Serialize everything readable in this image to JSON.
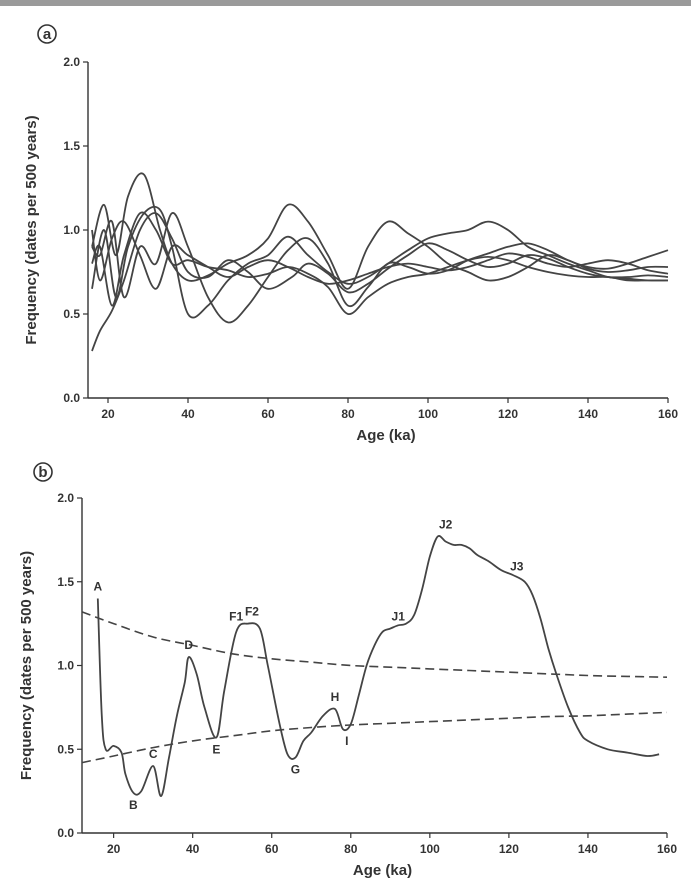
{
  "chart_data": [
    {
      "panel_label": "a",
      "type": "line",
      "xlabel": "Age (ka)",
      "ylabel": "Frequency (dates per 500 years)",
      "xlim": [
        15,
        160
      ],
      "ylim": [
        0,
        2.0
      ],
      "xticks": [
        "20",
        "40",
        "60",
        "80",
        "100",
        "120",
        "140",
        "160"
      ],
      "yticks": [
        "0.0",
        "0.5",
        "1.0",
        "1.5",
        "2.0"
      ],
      "series": [
        {
          "x": [
            16,
            18,
            21,
            24,
            28,
            32,
            36,
            40,
            45,
            50,
            55,
            60,
            66,
            70,
            75,
            80,
            85,
            90,
            95,
            100,
            105,
            110,
            115,
            120,
            125,
            130,
            135,
            140,
            145,
            150,
            155,
            160
          ],
          "y": [
            0.28,
            0.4,
            0.52,
            0.7,
            1.0,
            1.1,
            0.95,
            0.75,
            0.72,
            0.82,
            0.75,
            0.65,
            0.72,
            0.8,
            0.74,
            0.63,
            0.68,
            0.77,
            0.85,
            0.92,
            0.88,
            0.82,
            0.78,
            0.8,
            0.85,
            0.83,
            0.78,
            0.74,
            0.72,
            0.72,
            0.73,
            0.72
          ]
        },
        {
          "x": [
            16,
            19,
            22,
            25,
            29,
            33,
            36,
            40,
            45,
            50,
            55,
            60,
            65,
            70,
            75,
            80,
            85,
            90,
            95,
            100,
            105,
            110,
            115,
            120,
            125,
            130,
            135,
            140,
            145,
            150,
            155,
            160
          ],
          "y": [
            0.9,
            1.15,
            0.85,
            1.2,
            1.33,
            1.0,
            0.8,
            0.7,
            0.73,
            0.8,
            0.85,
            0.95,
            1.15,
            1.05,
            0.85,
            0.65,
            0.9,
            1.05,
            0.98,
            0.9,
            0.8,
            0.75,
            0.7,
            0.72,
            0.78,
            0.85,
            0.82,
            0.77,
            0.75,
            0.76,
            0.78,
            0.78
          ]
        },
        {
          "x": [
            16,
            19,
            22,
            25,
            29,
            33,
            36,
            40,
            45,
            50,
            55,
            60,
            65,
            70,
            75,
            80,
            85,
            90,
            95,
            100,
            105,
            110,
            115,
            120,
            125,
            130,
            135,
            140,
            145,
            150,
            155,
            160
          ],
          "y": [
            0.65,
            1.0,
            0.6,
            0.9,
            1.1,
            1.12,
            0.9,
            0.5,
            0.55,
            0.7,
            0.8,
            0.85,
            0.96,
            0.85,
            0.75,
            0.68,
            0.72,
            0.8,
            0.88,
            0.95,
            0.98,
            1.0,
            1.05,
            1.0,
            0.9,
            0.85,
            0.8,
            0.76,
            0.72,
            0.71,
            0.7,
            0.7
          ]
        },
        {
          "x": [
            16,
            18,
            21,
            24,
            28,
            32,
            36,
            40,
            45,
            50,
            55,
            60,
            65,
            70,
            75,
            80,
            85,
            90,
            95,
            100,
            105,
            110,
            115,
            120,
            125,
            130,
            135,
            140,
            145,
            150,
            155,
            160
          ],
          "y": [
            0.9,
            0.85,
            1.05,
            0.6,
            0.9,
            0.8,
            1.1,
            0.9,
            0.6,
            0.45,
            0.55,
            0.72,
            0.88,
            0.95,
            0.8,
            0.55,
            0.66,
            0.8,
            0.78,
            0.74,
            0.76,
            0.82,
            0.86,
            0.9,
            0.92,
            0.88,
            0.82,
            0.78,
            0.77,
            0.8,
            0.84,
            0.88
          ]
        },
        {
          "x": [
            16,
            18,
            21,
            24,
            28,
            32,
            36,
            40,
            45,
            50,
            55,
            60,
            65,
            70,
            75,
            80,
            85,
            90,
            95,
            100,
            105,
            110,
            115,
            120,
            125,
            130,
            135,
            140,
            145,
            150,
            155,
            160
          ],
          "y": [
            1.0,
            0.7,
            0.95,
            1.05,
            0.85,
            0.65,
            0.9,
            0.85,
            0.78,
            0.72,
            0.78,
            0.82,
            0.78,
            0.72,
            0.68,
            0.7,
            0.74,
            0.78,
            0.8,
            0.78,
            0.76,
            0.78,
            0.82,
            0.86,
            0.84,
            0.8,
            0.78,
            0.8,
            0.82,
            0.8,
            0.76,
            0.74
          ]
        },
        {
          "x": [
            16,
            18,
            21,
            24,
            28,
            32,
            36,
            40,
            45,
            50,
            55,
            60,
            65,
            70,
            75,
            80,
            85,
            90,
            95,
            100,
            105,
            110,
            115,
            120,
            125,
            130,
            135,
            140,
            145,
            150,
            155,
            160
          ],
          "y": [
            0.8,
            0.9,
            0.55,
            0.85,
            1.1,
            1.0,
            0.8,
            0.82,
            0.78,
            0.76,
            0.72,
            0.74,
            0.78,
            0.74,
            0.66,
            0.5,
            0.6,
            0.68,
            0.72,
            0.74,
            0.78,
            0.82,
            0.84,
            0.82,
            0.78,
            0.75,
            0.73,
            0.72,
            0.72,
            0.7,
            0.7,
            0.7
          ]
        }
      ]
    },
    {
      "panel_label": "b",
      "type": "line",
      "xlabel": "Age (ka)",
      "ylabel": "Frequency (dates per 500 years)",
      "xlim": [
        12,
        160
      ],
      "ylim": [
        0,
        2.0
      ],
      "xticks": [
        "20",
        "40",
        "60",
        "80",
        "100",
        "120",
        "140",
        "160"
      ],
      "yticks": [
        "0.0",
        "0.5",
        "1.0",
        "1.5",
        "2.0"
      ],
      "series": [
        {
          "style": "solid",
          "x": [
            16,
            17,
            18,
            20,
            22,
            23,
            25,
            27,
            30,
            32,
            34,
            36,
            38,
            39,
            41,
            43,
            46,
            48,
            51,
            54,
            57,
            59,
            62,
            64,
            66,
            68,
            70,
            73,
            76,
            78,
            80,
            82,
            84,
            86,
            88,
            90,
            92,
            94,
            96,
            98,
            100,
            102,
            104,
            106,
            108,
            110,
            112,
            115,
            118,
            121,
            124,
            126,
            128,
            130,
            132,
            135,
            138,
            140,
            145,
            150,
            155,
            158
          ],
          "y": [
            1.4,
            0.7,
            0.5,
            0.52,
            0.48,
            0.35,
            0.24,
            0.25,
            0.4,
            0.22,
            0.45,
            0.7,
            0.9,
            1.05,
            0.95,
            0.75,
            0.57,
            0.85,
            1.2,
            1.25,
            1.22,
            1.0,
            0.65,
            0.47,
            0.45,
            0.55,
            0.6,
            0.7,
            0.74,
            0.62,
            0.65,
            0.82,
            1.0,
            1.12,
            1.2,
            1.22,
            1.24,
            1.25,
            1.3,
            1.45,
            1.65,
            1.77,
            1.74,
            1.72,
            1.72,
            1.7,
            1.66,
            1.62,
            1.57,
            1.54,
            1.5,
            1.42,
            1.28,
            1.1,
            0.95,
            0.75,
            0.6,
            0.55,
            0.5,
            0.48,
            0.46,
            0.47
          ]
        },
        {
          "style": "dashed",
          "x": [
            12,
            20,
            30,
            40,
            50,
            60,
            70,
            80,
            90,
            100,
            110,
            120,
            130,
            140,
            150,
            160
          ],
          "y": [
            1.32,
            1.25,
            1.17,
            1.12,
            1.07,
            1.04,
            1.02,
            1.0,
            0.99,
            0.98,
            0.97,
            0.96,
            0.95,
            0.94,
            0.935,
            0.93
          ]
        },
        {
          "style": "dashed",
          "x": [
            12,
            20,
            30,
            40,
            50,
            60,
            70,
            80,
            90,
            100,
            110,
            120,
            130,
            140,
            150,
            160
          ],
          "y": [
            0.42,
            0.46,
            0.51,
            0.55,
            0.58,
            0.61,
            0.63,
            0.645,
            0.655,
            0.665,
            0.675,
            0.685,
            0.695,
            0.7,
            0.71,
            0.72
          ]
        }
      ],
      "annotations": [
        {
          "label": "A",
          "x": 16,
          "y": 1.4
        },
        {
          "label": "B",
          "x": 25,
          "y": 0.24
        },
        {
          "label": "C",
          "x": 30,
          "y": 0.4
        },
        {
          "label": "D",
          "x": 39,
          "y": 1.05
        },
        {
          "label": "E",
          "x": 46,
          "y": 0.57
        },
        {
          "label": "F1",
          "x": 51,
          "y": 1.22
        },
        {
          "label": "F2",
          "x": 55,
          "y": 1.25
        },
        {
          "label": "G",
          "x": 66,
          "y": 0.45
        },
        {
          "label": "H",
          "x": 76,
          "y": 0.74
        },
        {
          "label": "I",
          "x": 79,
          "y": 0.62
        },
        {
          "label": "J1",
          "x": 92,
          "y": 1.22
        },
        {
          "label": "J2",
          "x": 104,
          "y": 1.77
        },
        {
          "label": "J3",
          "x": 122,
          "y": 1.52
        }
      ]
    }
  ]
}
